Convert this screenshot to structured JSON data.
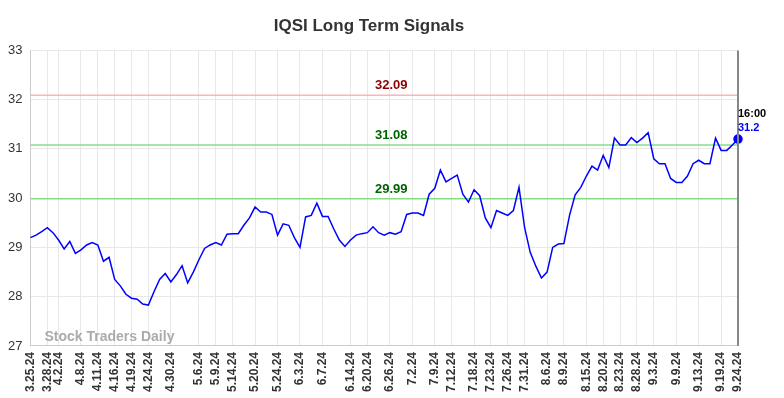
{
  "chart_data": {
    "type": "line",
    "title": "IQSI Long Term Signals",
    "watermark": "Stock Traders Daily",
    "last_point_label": "16:00",
    "color": "#0000ff",
    "grid": true,
    "ylim": [
      27,
      33
    ],
    "yticks": [
      27,
      28,
      29,
      30,
      31,
      32,
      33
    ],
    "annotations": [
      {
        "value": 32.09,
        "label": "32.09",
        "color": "#8b0000"
      },
      {
        "value": 31.08,
        "label": "31.08",
        "color": "#006400"
      },
      {
        "value": 29.99,
        "label": "29.99",
        "color": "#006400"
      }
    ],
    "categories": [
      "3.25.24",
      null,
      null,
      "3.28.24",
      null,
      "4.2.24",
      null,
      null,
      null,
      "4.8.24",
      null,
      null,
      "4.11.24",
      null,
      null,
      "4.16.24",
      null,
      null,
      "4.19.24",
      null,
      null,
      "4.24.24",
      null,
      null,
      null,
      "4.30.24",
      null,
      null,
      null,
      null,
      "5.6.24",
      null,
      null,
      "5.9.24",
      null,
      null,
      "5.14.24",
      null,
      null,
      null,
      "5.20.24",
      null,
      null,
      null,
      "5.24.24",
      null,
      null,
      null,
      "6.3.24",
      null,
      null,
      null,
      "6.7.24",
      null,
      null,
      null,
      null,
      "6.14.24",
      null,
      null,
      "6.20.24",
      null,
      null,
      null,
      "6.26.24",
      null,
      null,
      null,
      "7.2.24",
      null,
      null,
      null,
      "7.9.24",
      null,
      null,
      "7.12.24",
      null,
      null,
      null,
      "7.18.24",
      null,
      null,
      "7.23.24",
      null,
      null,
      "7.26.24",
      null,
      null,
      "7.31.24",
      null,
      null,
      null,
      "8.6.24",
      null,
      null,
      "8.9.24",
      null,
      null,
      null,
      "8.15.24",
      null,
      null,
      "8.20.24",
      null,
      null,
      "8.23.24",
      null,
      null,
      "8.28.24",
      null,
      null,
      "9.3.24",
      null,
      null,
      null,
      "9.9.24",
      null,
      null,
      null,
      "9.13.24",
      null,
      null,
      null,
      "9.19.24",
      null,
      null,
      "9.24.24"
    ],
    "values": [
      29.2,
      29.25,
      29.32,
      29.4,
      29.3,
      29.15,
      28.97,
      29.12,
      28.88,
      28.95,
      29.05,
      29.1,
      29.05,
      28.72,
      28.8,
      28.35,
      28.22,
      28.05,
      27.97,
      27.95,
      27.85,
      27.83,
      28.1,
      28.35,
      28.47,
      28.3,
      28.45,
      28.63,
      28.28,
      28.5,
      28.75,
      28.98,
      29.05,
      29.1,
      29.05,
      29.27,
      29.28,
      29.28,
      29.45,
      29.6,
      29.82,
      29.72,
      29.72,
      29.67,
      29.25,
      29.48,
      29.45,
      29.2,
      29.0,
      29.62,
      29.65,
      29.9,
      29.63,
      29.63,
      29.38,
      29.15,
      29.02,
      29.15,
      29.25,
      29.28,
      29.3,
      29.42,
      29.3,
      29.25,
      29.3,
      29.27,
      29.32,
      29.67,
      29.7,
      29.7,
      29.65,
      30.08,
      30.2,
      30.57,
      30.33,
      30.4,
      30.47,
      30.08,
      29.92,
      30.17,
      30.05,
      29.6,
      29.4,
      29.75,
      29.7,
      29.65,
      29.75,
      30.22,
      29.4,
      28.9,
      28.62,
      28.38,
      28.5,
      29.0,
      29.07,
      29.08,
      29.65,
      30.07,
      30.22,
      30.45,
      30.65,
      30.57,
      30.87,
      30.62,
      31.22,
      31.08,
      31.08,
      31.23,
      31.13,
      31.22,
      31.33,
      30.8,
      30.7,
      30.7,
      30.4,
      30.32,
      30.32,
      30.45,
      30.7,
      30.77,
      30.7,
      30.7,
      31.22,
      30.97,
      30.97,
      31.08,
      31.2
    ]
  }
}
